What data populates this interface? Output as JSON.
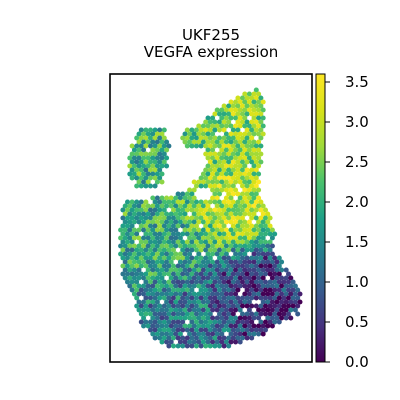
{
  "chart_data": {
    "type": "scatter",
    "title": "UKF255",
    "subtitle": "VEGFA expression",
    "xlabel": "",
    "ylabel": "",
    "grid": false,
    "colorbar": {
      "colormap": "viridis",
      "range": [
        0.0,
        3.6
      ],
      "tick_labels": [
        "0.0",
        "0.5",
        "1.0",
        "1.5",
        "2.0",
        "2.5",
        "3.0",
        "3.5"
      ],
      "ticks": [
        0.0,
        0.5,
        1.0,
        1.5,
        2.0,
        2.5,
        3.0,
        3.5
      ]
    },
    "colors": {
      "low": "#440154",
      "mid": "#21918c",
      "high": "#fde725"
    },
    "regions": [
      {
        "name": "top-left-lobe",
        "typical_value": 2.0
      },
      {
        "name": "upper-right-lobe",
        "typical_value": 2.6
      },
      {
        "name": "center-high",
        "typical_value": 3.0
      },
      {
        "name": "left-mid",
        "typical_value": 1.9
      },
      {
        "name": "lower-right-low",
        "typical_value": 0.4
      },
      {
        "name": "bottom-mixed",
        "typical_value": 1.3
      }
    ]
  }
}
